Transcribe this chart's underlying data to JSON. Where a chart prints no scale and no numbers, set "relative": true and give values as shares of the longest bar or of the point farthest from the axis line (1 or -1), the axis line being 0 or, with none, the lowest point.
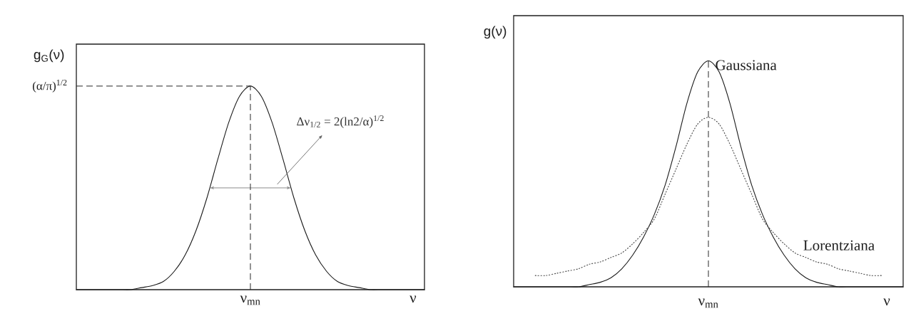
{
  "chart_data": [
    {
      "type": "line",
      "relative": true,
      "ylabel": "g$_{G}$(ν)",
      "xlabel": "ν",
      "categories": [
        null,
        null,
        null,
        null,
        null,
        null,
        null,
        null,
        null,
        null,
        null,
        null,
        null,
        null,
        null,
        null,
        null,
        null,
        null,
        null,
        null,
        null,
        null,
        null,
        null,
        null,
        null,
        null,
        null,
        null,
        null,
        null,
        null
      ],
      "series": [
        {
          "color": "#1a1a1a",
          "values": [
            0,
            0,
            0,
            0,
            0,
            0,
            0.01,
            0.02,
            0.04,
            0.09,
            0.17,
            0.29,
            0.45,
            0.64,
            0.82,
            0.95,
            1,
            0.95,
            0.82,
            0.64,
            0.45,
            0.29,
            0.17,
            0.09,
            0.04,
            0.02,
            0.01,
            0,
            0,
            0,
            0,
            0,
            0
          ]
        }
      ],
      "ref_lines": [
        {
          "axis": "y",
          "value": 1,
          "label": "(α/π)$^{1/2}$",
          "line_style": "dashed"
        }
      ],
      "annotations": [
        "Δν$_{1/2}$ = 2(ln2/α)$^{1/2}$",
        "ν$_{mn}$"
      ]
    },
    {
      "type": "line",
      "relative": true,
      "ylabel": "g(ν)",
      "xlabel": "ν",
      "categories": [
        null,
        null,
        null,
        null,
        null,
        null,
        null,
        null,
        null,
        null,
        null,
        null,
        null,
        null,
        null,
        null,
        null,
        null,
        null,
        null,
        null,
        null,
        null,
        null,
        null,
        null,
        null,
        null,
        null,
        null,
        null,
        null,
        null,
        null,
        null,
        null,
        null
      ],
      "series": [
        {
          "name": "Gaussiana",
          "color": "#1a1a1a",
          "line_style": "solid",
          "values": [
            0,
            0,
            0,
            0,
            0,
            0,
            0,
            0.01,
            0.02,
            0.04,
            0.08,
            0.14,
            0.22,
            0.32,
            0.45,
            0.62,
            0.81,
            0.95,
            1,
            0.95,
            0.81,
            0.62,
            0.45,
            0.32,
            0.22,
            0.14,
            0.08,
            0.04,
            0.02,
            0.01,
            0,
            0,
            0,
            0,
            0,
            0,
            0
          ]
        },
        {
          "name": "Lorentziana",
          "color": "#444444",
          "line_style": "dotted",
          "values": [
            null,
            null,
            0.05,
            0.05,
            0.06,
            0.07,
            0.08,
            0.1,
            0.11,
            0.13,
            0.15,
            0.19,
            0.24,
            0.3,
            0.41,
            0.52,
            0.63,
            0.72,
            0.75,
            0.72,
            0.63,
            0.52,
            0.41,
            0.3,
            0.24,
            0.19,
            0.15,
            0.13,
            0.11,
            0.1,
            0.08,
            0.07,
            0.06,
            0.05,
            0.05,
            null,
            null
          ]
        }
      ],
      "annotations": [
        "ν$_{mn}$"
      ]
    }
  ]
}
